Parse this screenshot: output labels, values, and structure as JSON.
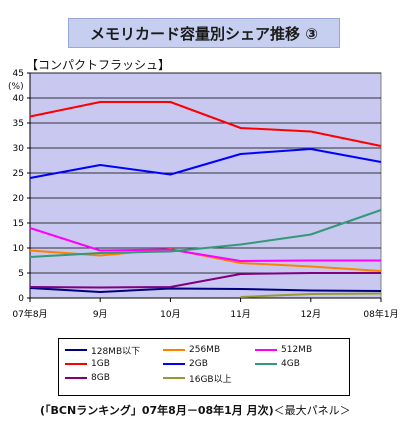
{
  "title": "メモリカード容量別シェア推移 ③",
  "subtitle": "【コンパクトフラッシュ】",
  "unit_label": "(%)",
  "source": {
    "bold": "(「BCNランキング」07年8月－08年1月 月次)",
    "normal": "＜最大パネル＞"
  },
  "chart_data": {
    "type": "line",
    "categories": [
      "07年8月",
      "9月",
      "10月",
      "11月",
      "12月",
      "08年1月"
    ],
    "ylim": [
      0,
      45
    ],
    "yticks": [
      0,
      5,
      10,
      15,
      20,
      25,
      30,
      35,
      40,
      45
    ],
    "grid": true,
    "background": "#c8c8f0",
    "series": [
      {
        "name": "128MB以下",
        "color": "#000080",
        "values": [
          2.0,
          1.2,
          1.9,
          1.8,
          1.5,
          1.4
        ]
      },
      {
        "name": "256MB",
        "color": "#ff8000",
        "values": [
          9.5,
          8.5,
          9.8,
          7.0,
          6.3,
          5.4
        ]
      },
      {
        "name": "512MB",
        "color": "#ff00ff",
        "values": [
          14.0,
          9.5,
          9.7,
          7.4,
          7.5,
          7.5
        ]
      },
      {
        "name": "1GB",
        "color": "#ff0000",
        "values": [
          36.3,
          39.2,
          39.2,
          34.0,
          33.3,
          30.4
        ]
      },
      {
        "name": "2GB",
        "color": "#0000ff",
        "values": [
          24.0,
          26.6,
          24.7,
          28.8,
          29.8,
          27.2
        ]
      },
      {
        "name": "4GB",
        "color": "#339977",
        "values": [
          8.2,
          9.0,
          9.3,
          10.7,
          12.7,
          17.6
        ]
      },
      {
        "name": "8GB",
        "color": "#800080",
        "values": [
          2.2,
          2.1,
          2.2,
          4.8,
          5.0,
          5.0
        ]
      },
      {
        "name": "16GB以上",
        "color": "#999933",
        "values": [
          null,
          null,
          null,
          0.2,
          0.8,
          0.9
        ]
      }
    ]
  }
}
